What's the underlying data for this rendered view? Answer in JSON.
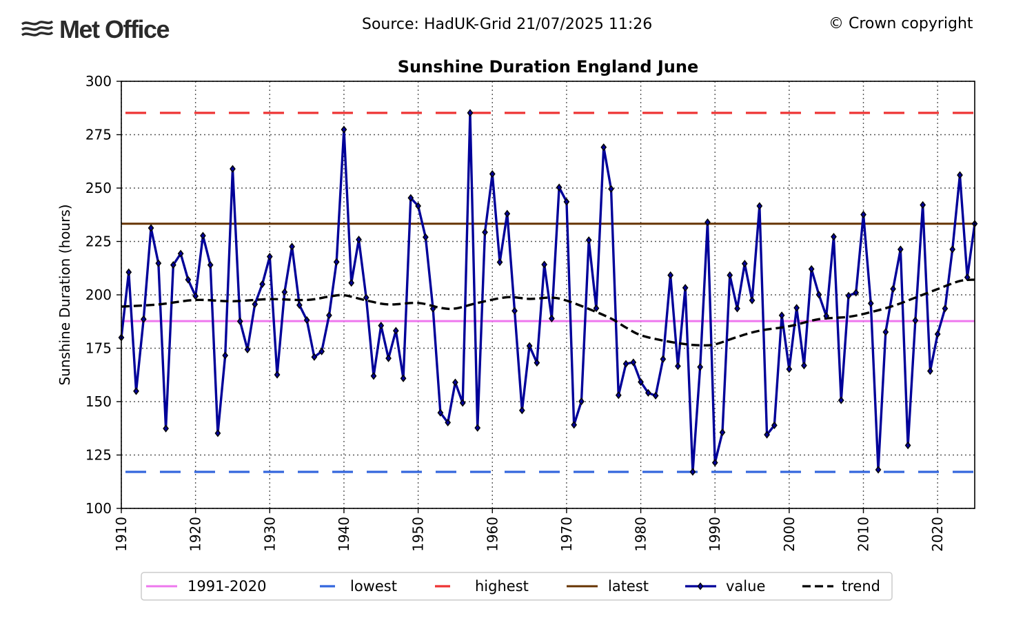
{
  "header": {
    "logo_text": "Met Office",
    "source": "Source: HadUK-Grid 21/07/2025 11:26",
    "copyright": "© Crown copyright"
  },
  "chart_data": {
    "type": "line",
    "title": "Sunshine Duration England June",
    "xlabel": "",
    "ylabel": "Sunshine Duration (hours)",
    "xlim": [
      1910,
      2025
    ],
    "ylim": [
      100,
      300
    ],
    "grid": true,
    "xticks": [
      1910,
      1920,
      1930,
      1940,
      1950,
      1960,
      1970,
      1980,
      1990,
      2000,
      2010,
      2020
    ],
    "yticks": [
      100,
      125,
      150,
      175,
      200,
      225,
      250,
      275,
      300
    ],
    "legend_position": "bottom-center",
    "colors": {
      "average": "#ee77ee",
      "lowest": "#3366dd",
      "highest": "#ee3333",
      "latest": "#663300",
      "value": "#000099",
      "trend": "#000000"
    },
    "reference_lines": {
      "average_1991_2020": 187.7,
      "lowest": 117.1,
      "highest": 285.2,
      "latest": 233.3
    },
    "series": [
      {
        "name": "value",
        "x_start": 1910,
        "values": [
          180.0,
          210.6,
          154.9,
          188.6,
          231.3,
          214.8,
          137.4,
          214.0,
          219.3,
          207.1,
          199.4,
          227.7,
          214.0,
          135.2,
          171.6,
          259.0,
          187.6,
          174.4,
          195.6,
          205.0,
          217.9,
          162.6,
          201.3,
          222.6,
          195.2,
          188.2,
          170.9,
          173.5,
          190.4,
          215.4,
          277.4,
          205.6,
          225.9,
          198.7,
          162.0,
          185.6,
          170.3,
          183.2,
          160.9,
          245.4,
          241.6,
          227.0,
          193.5,
          144.8,
          140.2,
          159.0,
          149.4,
          285.2,
          137.7,
          229.3,
          256.6,
          215.3,
          238.0,
          192.5,
          145.9,
          176.1,
          168.2,
          214.2,
          188.9,
          250.3,
          243.6,
          139.1,
          150.1,
          225.6,
          193.7,
          269.1,
          249.6,
          153.0,
          167.7,
          168.4,
          159.2,
          154.1,
          152.8,
          169.9,
          209.2,
          166.6,
          203.3,
          117.1,
          166.2,
          234.0,
          121.4,
          135.6,
          209.2,
          193.6,
          214.6,
          197.4,
          241.6,
          134.5,
          138.9,
          190.4,
          165.2,
          193.9,
          166.9,
          212.1,
          200.1,
          190.1,
          227.2,
          150.6,
          199.6,
          201.0,
          237.6,
          196.0,
          118.1,
          182.6,
          202.8,
          221.3,
          129.5,
          188.0,
          242.1,
          164.3,
          181.6,
          193.6,
          221.3,
          256.1,
          208.2,
          233.3
        ]
      },
      {
        "name": "trend",
        "x": [
          1910,
          1915,
          1920,
          1925,
          1930,
          1935,
          1938,
          1940,
          1943,
          1946,
          1950,
          1953,
          1955,
          1958,
          1962,
          1965,
          1968,
          1970,
          1973,
          1976,
          1978,
          1980,
          1983,
          1986,
          1988,
          1990,
          1993,
          1996,
          2000,
          2004,
          2008,
          2011,
          2014,
          2017,
          2020,
          2023,
          2025
        ],
        "values": [
          194.5,
          195.5,
          197.6,
          197.0,
          198.0,
          197.6,
          199.2,
          199.8,
          197.4,
          195.5,
          196.2,
          193.9,
          193.6,
          196.2,
          198.9,
          198.1,
          198.7,
          197.3,
          193.4,
          188.9,
          184.7,
          181.1,
          178.6,
          176.9,
          176.4,
          176.8,
          180.3,
          183.2,
          185.3,
          188.6,
          189.7,
          191.9,
          194.8,
          198.7,
          202.7,
          206.5,
          207.1
        ]
      }
    ],
    "legend": [
      {
        "key": "average",
        "label": "1991-2020",
        "style": "solid"
      },
      {
        "key": "lowest",
        "label": "lowest",
        "style": "dashed"
      },
      {
        "key": "highest",
        "label": "highest",
        "style": "dashed"
      },
      {
        "key": "latest",
        "label": "latest",
        "style": "solid"
      },
      {
        "key": "value",
        "label": "value",
        "style": "marker"
      },
      {
        "key": "trend",
        "label": "trend",
        "style": "dashed"
      }
    ]
  }
}
